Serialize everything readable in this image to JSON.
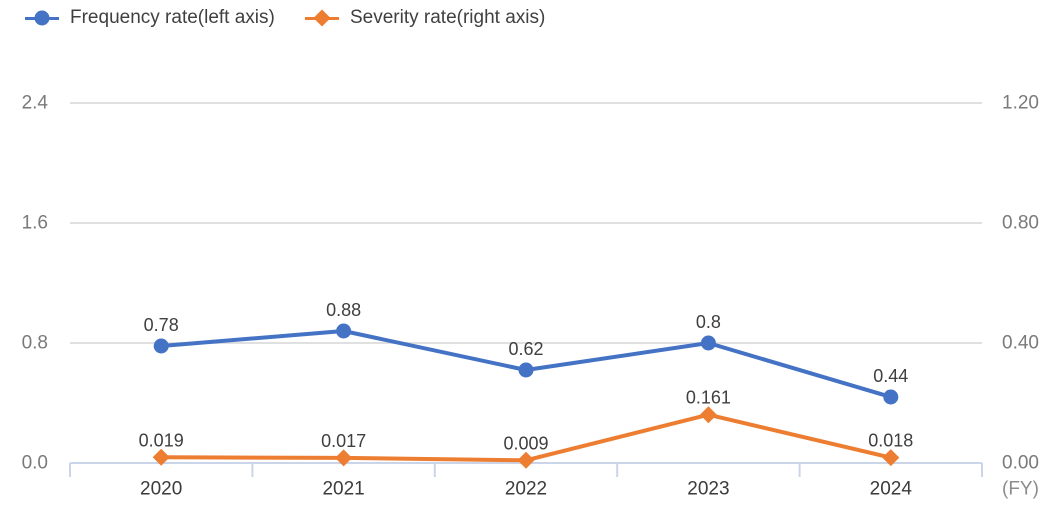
{
  "legend": {
    "items": [
      {
        "label": "Frequency rate(left axis)",
        "color": "#4472c4",
        "marker": "circle"
      },
      {
        "label": "Severity rate(right axis)",
        "color": "#ed7d31",
        "marker": "diamond"
      }
    ]
  },
  "chart_data": {
    "type": "line",
    "title": "",
    "categories": [
      "2020",
      "2021",
      "2022",
      "2023",
      "2024"
    ],
    "x_axis_unit_label": "(FY)",
    "series": [
      {
        "name": "Frequency rate(left axis)",
        "axis": "left",
        "color": "#4472c4",
        "marker": "circle",
        "values": [
          0.78,
          0.88,
          0.62,
          0.8,
          0.44
        ],
        "data_labels": [
          "0.78",
          "0.88",
          "0.62",
          "0.8",
          "0.44"
        ]
      },
      {
        "name": "Severity rate(right axis)",
        "axis": "right",
        "color": "#ed7d31",
        "marker": "diamond",
        "values": [
          0.019,
          0.017,
          0.009,
          0.161,
          0.018
        ],
        "data_labels": [
          "0.019",
          "0.017",
          "0.009",
          "0.161",
          "0.018"
        ]
      }
    ],
    "left_axis": {
      "tick_labels": [
        "0.0",
        "0.8",
        "1.6",
        "2.4"
      ],
      "tick_values": [
        0,
        0.8,
        1.6,
        2.4
      ],
      "min": 0,
      "max": 2.4
    },
    "right_axis": {
      "tick_labels": [
        "0.00",
        "0.40",
        "0.80",
        "1.20"
      ],
      "tick_values": [
        0,
        0.4,
        0.8,
        1.2
      ],
      "min": 0,
      "max": 1.2
    },
    "grid": true,
    "legend_position": "top-left"
  },
  "colors": {
    "series_blue": "#4472c4",
    "series_orange": "#ed7d31",
    "gridline": "#e0e0e0",
    "axis_line": "#cbd5ea",
    "axis_tick_text": "#7a7a7a",
    "category_text": "#3b3b3b",
    "data_label_text": "#3f3f3f",
    "unit_text": "#8c8c8c"
  }
}
